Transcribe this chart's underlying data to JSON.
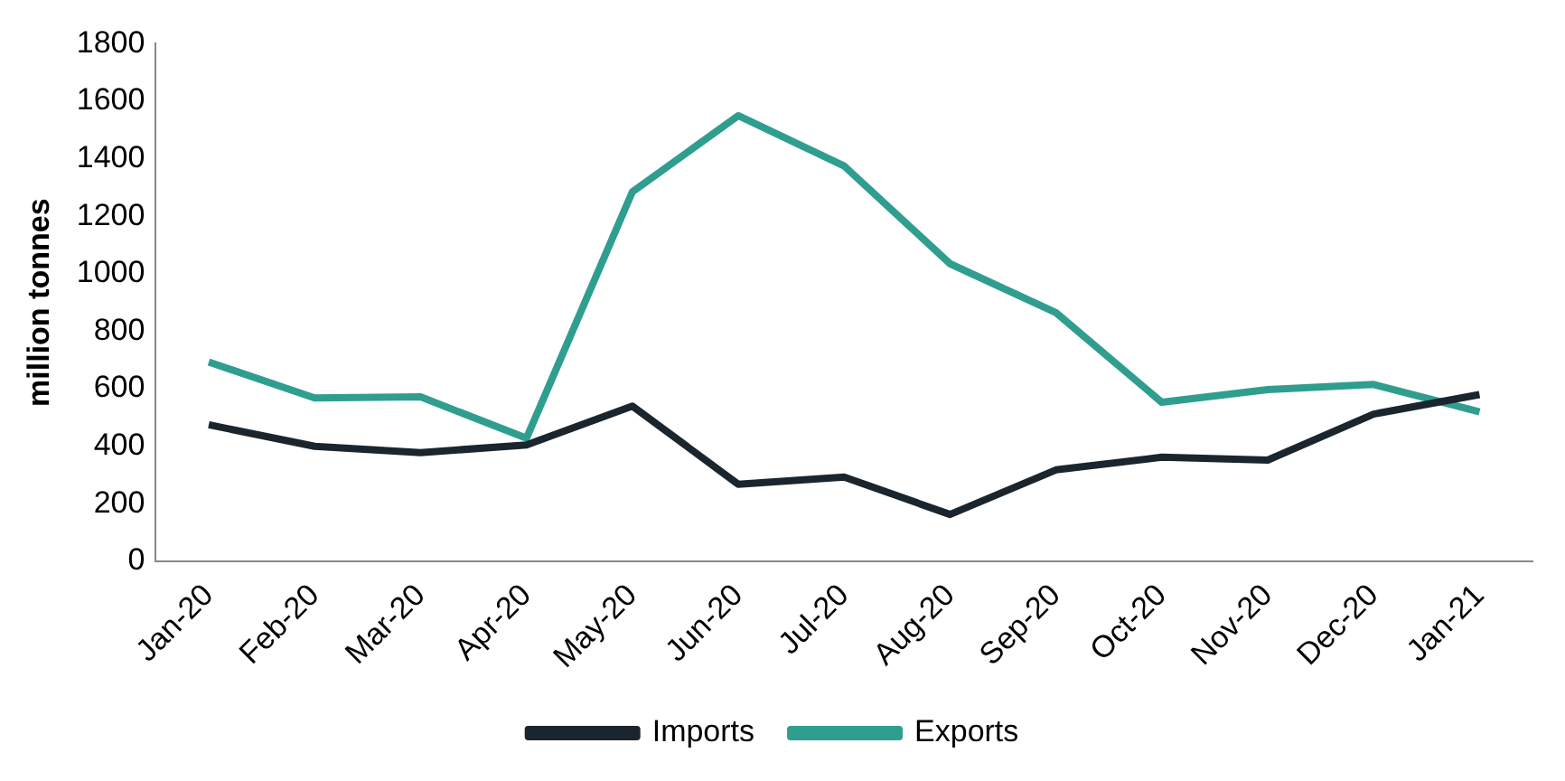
{
  "chart_data": {
    "type": "line",
    "ylabel": "million tonnes",
    "categories": [
      "Jan-20",
      "Feb-20",
      "Mar-20",
      "Apr-20",
      "May-20",
      "Jun-20",
      "Jul-20",
      "Aug-20",
      "Sep-20",
      "Oct-20",
      "Nov-20",
      "Dec-20",
      "Jan-21"
    ],
    "series": [
      {
        "name": "Imports",
        "color": "#1b252d",
        "values": [
          475,
          400,
          378,
          405,
          540,
          268,
          293,
          163,
          318,
          362,
          352,
          512,
          580
        ]
      },
      {
        "name": "Exports",
        "color": "#2f9e8f",
        "values": [
          693,
          568,
          572,
          428,
          1285,
          1550,
          1375,
          1035,
          865,
          553,
          597,
          615,
          520
        ]
      }
    ],
    "ylim": [
      0,
      1800
    ],
    "yticks": [
      0,
      200,
      400,
      600,
      800,
      1000,
      1200,
      1400,
      1600,
      1800
    ],
    "grid": false,
    "legend": "bottom",
    "marker": "none",
    "line_style": "solid"
  }
}
